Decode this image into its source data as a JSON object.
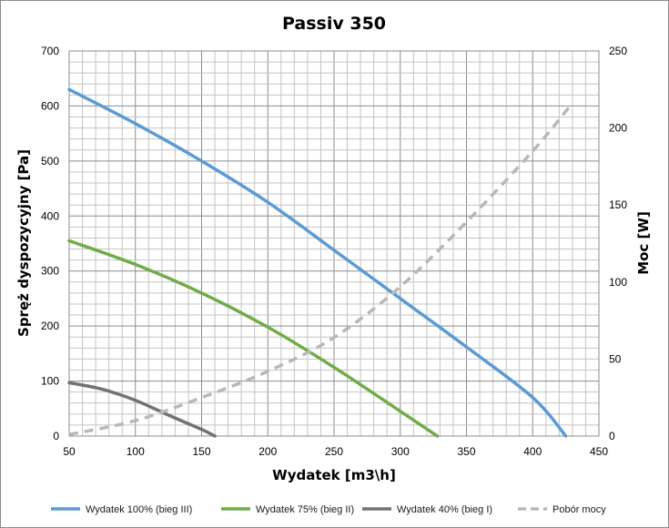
{
  "chart_data": {
    "type": "line",
    "title": "Passiv 350",
    "xlabel": "Wydatek [m3\\h]",
    "ylabel": "Spręż dyspozycyjny [Pa]",
    "y2label": "Moc [W]",
    "xlim": [
      50,
      450
    ],
    "ylim": [
      0,
      700
    ],
    "y2lim": [
      0,
      250
    ],
    "x_ticks": [
      "50",
      "100",
      "150",
      "200",
      "250",
      "300",
      "350",
      "400",
      "450"
    ],
    "y_ticks": [
      "0",
      "100",
      "200",
      "300",
      "400",
      "500",
      "600",
      "700"
    ],
    "y2_ticks": [
      "0",
      "50",
      "100",
      "150",
      "200",
      "250"
    ],
    "grid": true,
    "legend_position": "bottom",
    "series": [
      {
        "name": "Wydatek 100% (bieg III)",
        "axis": "left",
        "color": "#5b9bd5",
        "dash": "solid",
        "x": [
          50,
          100,
          150,
          200,
          250,
          300,
          350,
          400,
          425
        ],
        "y": [
          630,
          568,
          500,
          425,
          338,
          250,
          162,
          70,
          0
        ]
      },
      {
        "name": "Wydatek 75% (bieg II)",
        "axis": "left",
        "color": "#70ad47",
        "dash": "solid",
        "x": [
          50,
          100,
          150,
          200,
          250,
          300,
          328
        ],
        "y": [
          355,
          312,
          260,
          198,
          125,
          45,
          0
        ]
      },
      {
        "name": "Wydatek 40% (bieg I)",
        "axis": "left",
        "color": "#767171",
        "dash": "solid",
        "x": [
          50,
          75,
          100,
          125,
          150,
          160
        ],
        "y": [
          97,
          85,
          65,
          38,
          12,
          0
        ]
      },
      {
        "name": "Pobór mocy",
        "axis": "right",
        "color": "#b8b8b8",
        "dash": "dashed",
        "x": [
          50,
          100,
          150,
          200,
          250,
          300,
          350,
          400,
          428
        ],
        "y": [
          1,
          10,
          25,
          42,
          64,
          97,
          139,
          185,
          214
        ]
      }
    ]
  }
}
